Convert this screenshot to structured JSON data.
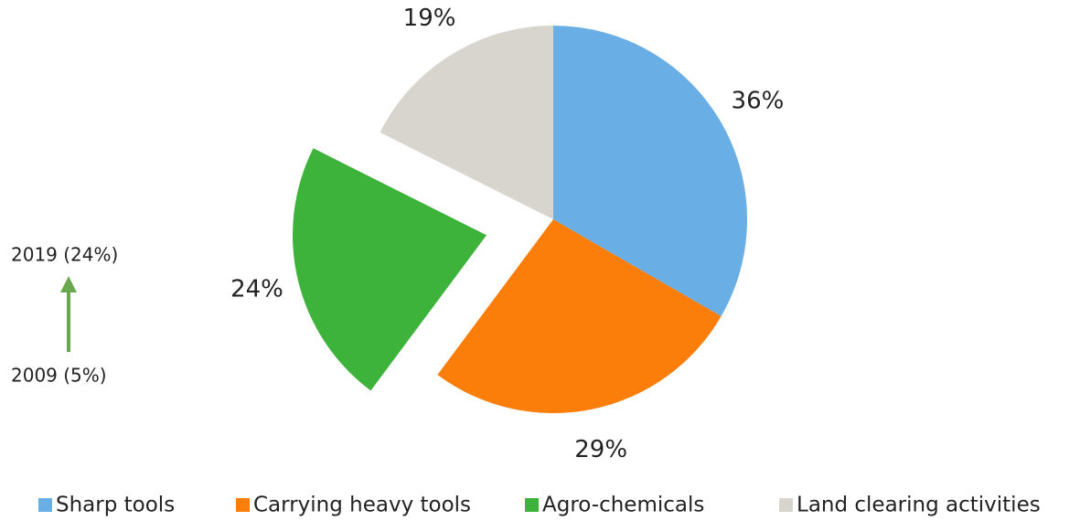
{
  "chart_data": {
    "type": "pie",
    "categories": [
      "Sharp tools",
      "Carrying heavy tools",
      "Agro-chemicals",
      "Land clearing activities"
    ],
    "values": [
      36,
      29,
      24,
      19
    ],
    "value_labels": [
      "36%",
      "29%",
      "24%",
      "19%"
    ],
    "colors": [
      "#6aaee6",
      "#fb7d0a",
      "#3db33b",
      "#d8d5cf"
    ],
    "exploded": [
      false,
      false,
      true,
      false
    ],
    "annotations": [
      "2019 (24%)",
      "2009 (5%)"
    ],
    "legend": "bottom"
  }
}
